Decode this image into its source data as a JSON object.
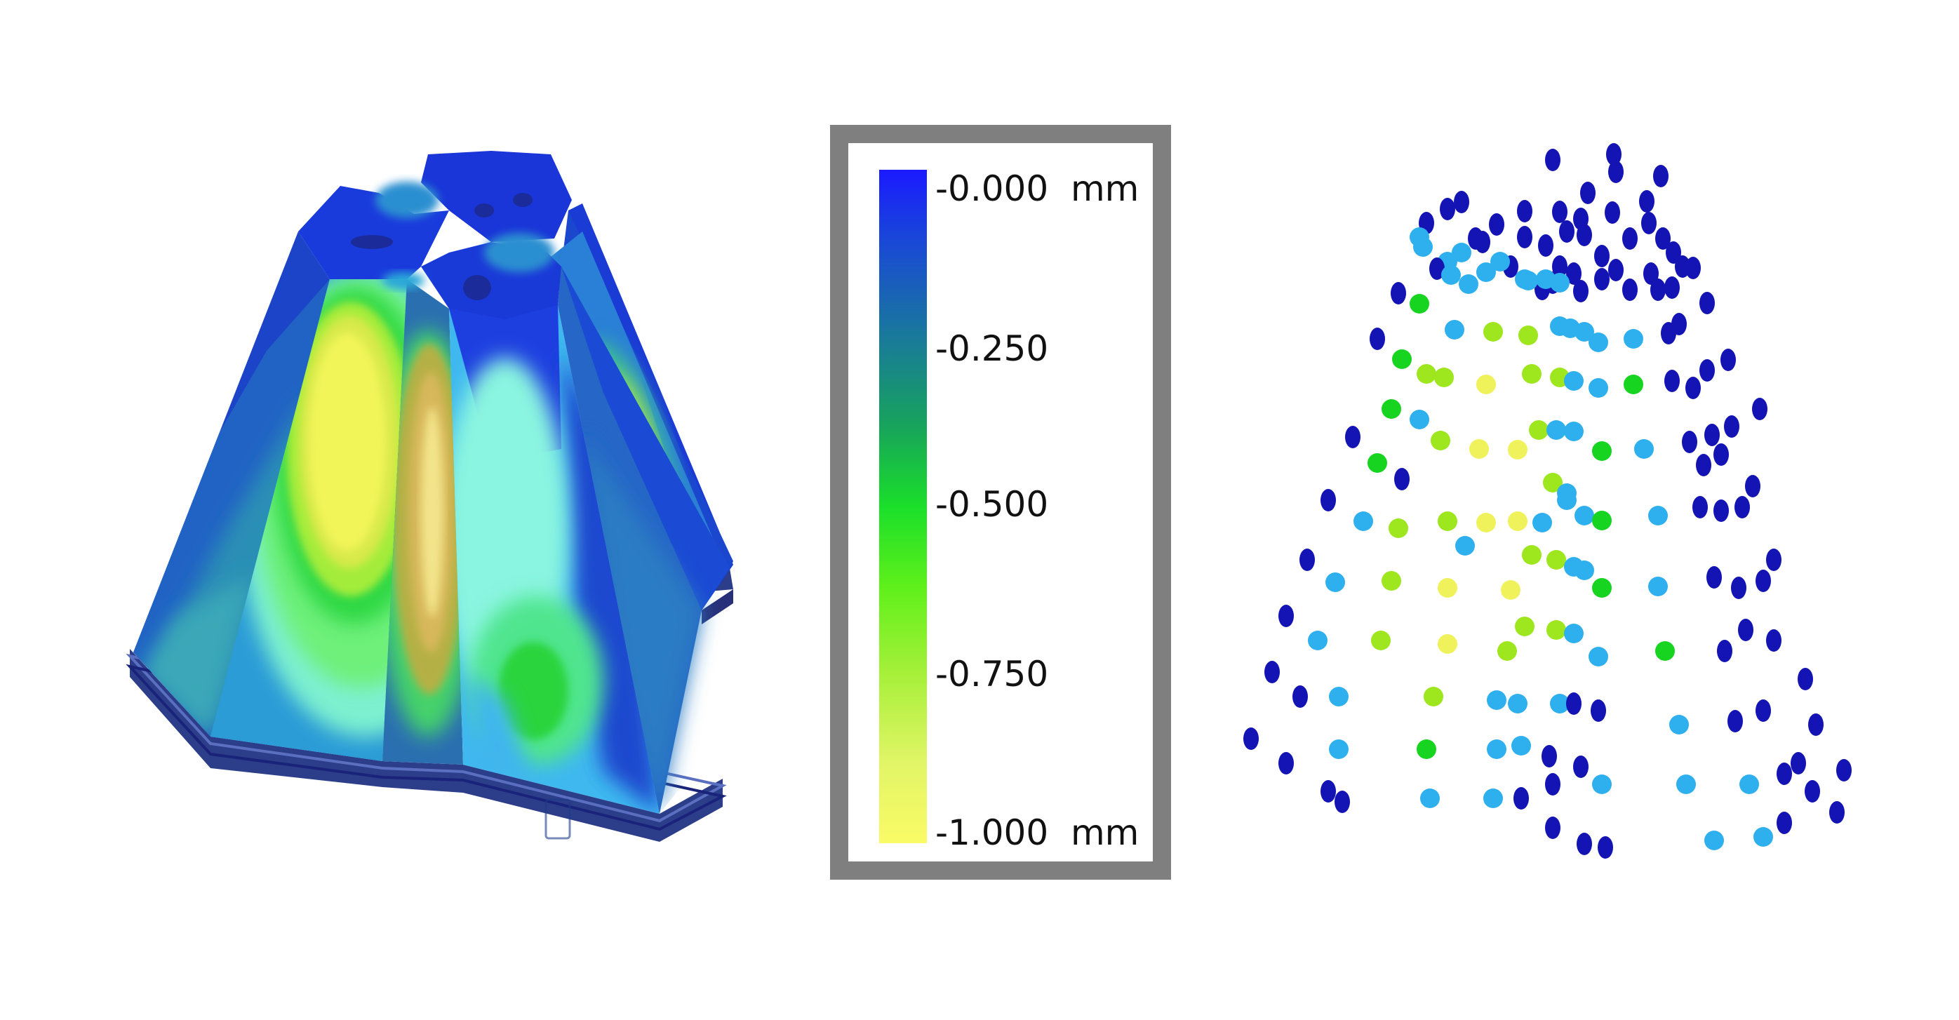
{
  "legend": {
    "ticks": [
      {
        "value": -0.0,
        "label": "-0.000  mm"
      },
      {
        "value": -0.25,
        "label": "-0.250"
      },
      {
        "value": -0.5,
        "label": "-0.500"
      },
      {
        "value": -0.75,
        "label": "-0.750"
      },
      {
        "value": -1.0,
        "label": "-1.000  mm"
      }
    ],
    "range": [
      0.0,
      -1.0
    ],
    "unit": "mm",
    "colors": {
      "min_deformation": "#1a1aff",
      "mid_low": "#197a9a",
      "mid": "#1adf2a",
      "mid_high": "#a7f03a",
      "max_deformation": "#fafb66"
    }
  }
}
